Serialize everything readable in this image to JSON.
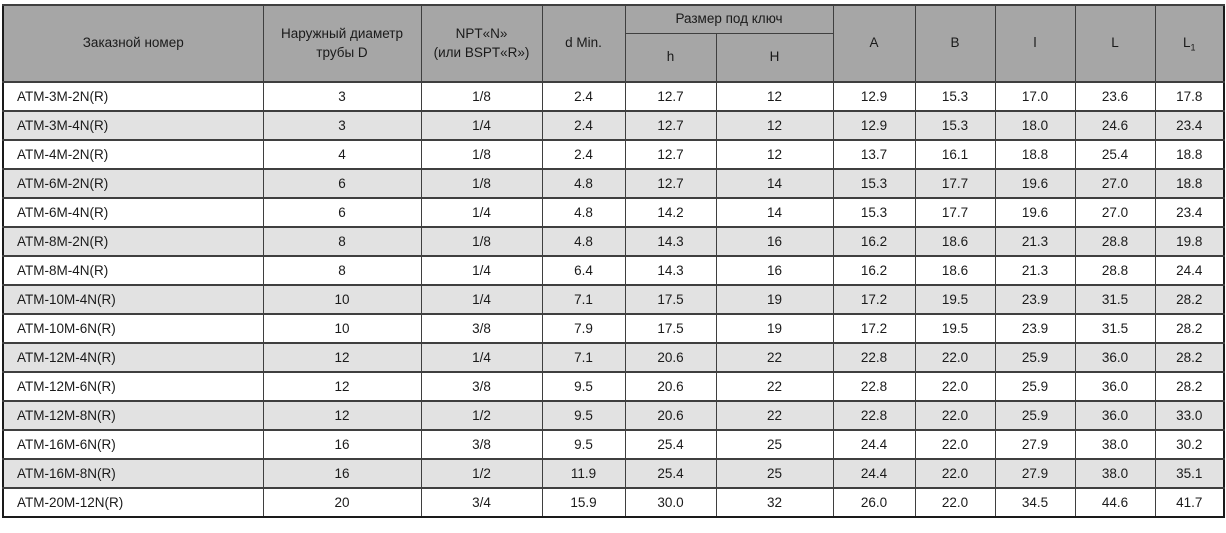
{
  "colors": {
    "header_bg": "#a6a6a6",
    "row_alt_bg": "#e2e2e2",
    "border": "#3f3f3f",
    "outer_border": "#1a1a1a"
  },
  "table": {
    "header": {
      "order_number": "Заказной номер",
      "outer_diameter": "Наружный диаметр\nтрубы D",
      "thread": "NPT«N»\n(или BSPT«R»)",
      "d_min": "d Min.",
      "wrench_size_group": "Размер под ключ",
      "h": "h",
      "H": "H",
      "A": "A",
      "B": "B",
      "l": "l",
      "L": "L",
      "L1_base": "L",
      "L1_sub": "1"
    },
    "rows": [
      [
        "ATM-3M-2N(R)",
        "3",
        "1/8",
        "2.4",
        "12.7",
        "12",
        "12.9",
        "15.3",
        "17.0",
        "23.6",
        "17.8"
      ],
      [
        "ATM-3M-4N(R)",
        "3",
        "1/4",
        "2.4",
        "12.7",
        "12",
        "12.9",
        "15.3",
        "18.0",
        "24.6",
        "23.4"
      ],
      [
        "ATM-4M-2N(R)",
        "4",
        "1/8",
        "2.4",
        "12.7",
        "12",
        "13.7",
        "16.1",
        "18.8",
        "25.4",
        "18.8"
      ],
      [
        "ATM-6M-2N(R)",
        "6",
        "1/8",
        "4.8",
        "12.7",
        "14",
        "15.3",
        "17.7",
        "19.6",
        "27.0",
        "18.8"
      ],
      [
        "ATM-6M-4N(R)",
        "6",
        "1/4",
        "4.8",
        "14.2",
        "14",
        "15.3",
        "17.7",
        "19.6",
        "27.0",
        "23.4"
      ],
      [
        "ATM-8M-2N(R)",
        "8",
        "1/8",
        "4.8",
        "14.3",
        "16",
        "16.2",
        "18.6",
        "21.3",
        "28.8",
        "19.8"
      ],
      [
        "ATM-8M-4N(R)",
        "8",
        "1/4",
        "6.4",
        "14.3",
        "16",
        "16.2",
        "18.6",
        "21.3",
        "28.8",
        "24.4"
      ],
      [
        "ATM-10M-4N(R)",
        "10",
        "1/4",
        "7.1",
        "17.5",
        "19",
        "17.2",
        "19.5",
        "23.9",
        "31.5",
        "28.2"
      ],
      [
        "ATM-10M-6N(R)",
        "10",
        "3/8",
        "7.9",
        "17.5",
        "19",
        "17.2",
        "19.5",
        "23.9",
        "31.5",
        "28.2"
      ],
      [
        "ATM-12M-4N(R)",
        "12",
        "1/4",
        "7.1",
        "20.6",
        "22",
        "22.8",
        "22.0",
        "25.9",
        "36.0",
        "28.2"
      ],
      [
        "ATM-12M-6N(R)",
        "12",
        "3/8",
        "9.5",
        "20.6",
        "22",
        "22.8",
        "22.0",
        "25.9",
        "36.0",
        "28.2"
      ],
      [
        "ATM-12M-8N(R)",
        "12",
        "1/2",
        "9.5",
        "20.6",
        "22",
        "22.8",
        "22.0",
        "25.9",
        "36.0",
        "33.0"
      ],
      [
        "ATM-16M-6N(R)",
        "16",
        "3/8",
        "9.5",
        "25.4",
        "25",
        "24.4",
        "22.0",
        "27.9",
        "38.0",
        "30.2"
      ],
      [
        "ATM-16M-8N(R)",
        "16",
        "1/2",
        "11.9",
        "25.4",
        "25",
        "24.4",
        "22.0",
        "27.9",
        "38.0",
        "35.1"
      ],
      [
        "ATM-20M-12N(R)",
        "20",
        "3/4",
        "15.9",
        "30.0",
        "32",
        "26.0",
        "22.0",
        "34.5",
        "44.6",
        "41.7"
      ]
    ]
  }
}
